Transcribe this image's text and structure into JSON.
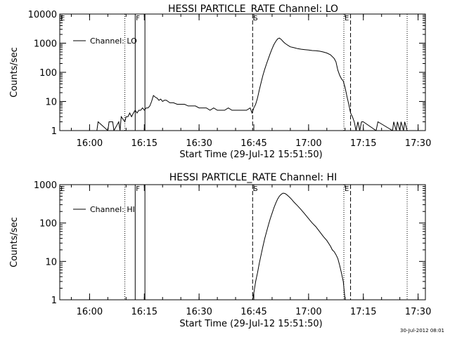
{
  "footer": {
    "timestamp": "30-Jul-2012 08:01"
  },
  "chart_data": [
    {
      "type": "line",
      "title": "HESSI PARTICLE_RATE Channel: LO",
      "xlabel": "Start Time (29-Jul-12 15:51:50)",
      "ylabel": "Counts/sec",
      "y_scale": "log",
      "xlim": [
        "15:51:50",
        "17:32:00"
      ],
      "ylim": [
        1,
        10000
      ],
      "x_ticks": [
        "16:00",
        "16:15",
        "16:30",
        "16:45",
        "17:00",
        "17:15",
        "17:30"
      ],
      "y_ticks": [
        "1",
        "10",
        "100",
        "1000",
        "10000"
      ],
      "legend": {
        "label": "Channel: LO",
        "position": "top-left"
      },
      "markers": [
        {
          "label": "E",
          "time": "15:51:50",
          "style": "dotted"
        },
        {
          "label": "",
          "time": "16:09:40",
          "style": "dotted"
        },
        {
          "label": "F",
          "time": "16:12:30",
          "style": "solid"
        },
        {
          "label": "",
          "time": "16:15:10",
          "style": "solid"
        },
        {
          "label": "S",
          "time": "16:44:40",
          "style": "dashed"
        },
        {
          "label": "E",
          "time": "17:09:40",
          "style": "dotted"
        },
        {
          "label": "",
          "time": "17:11:30",
          "style": "dashed"
        },
        {
          "label": "",
          "time": "17:27:00",
          "style": "dotted"
        }
      ],
      "series": [
        {
          "x": [
            "16:02:00",
            "16:02:20",
            "16:05:00",
            "16:05:20",
            "16:05:40",
            "16:06:00",
            "16:06:20",
            "16:06:40",
            "16:08:00",
            "16:08:20",
            "16:08:40",
            "16:09:40",
            "16:10:00",
            "16:10:30",
            "16:11:00",
            "16:11:30",
            "16:12:00",
            "16:12:30",
            "16:13:00",
            "16:13:30",
            "16:14:00",
            "16:14:30",
            "16:15:00",
            "16:15:30",
            "16:16:00",
            "16:16:30",
            "16:17:00",
            "16:17:30",
            "16:18:00",
            "16:18:30",
            "16:19:00",
            "16:19:30",
            "16:20:00",
            "16:20:30",
            "16:21:00",
            "16:21:30",
            "16:22:00",
            "16:23:00",
            "16:24:00",
            "16:25:00",
            "16:26:00",
            "16:27:00",
            "16:28:00",
            "16:29:00",
            "16:30:00",
            "16:31:00",
            "16:32:00",
            "16:33:00",
            "16:34:00",
            "16:35:00",
            "16:36:00",
            "16:37:00",
            "16:38:00",
            "16:39:00",
            "16:40:00",
            "16:41:00",
            "16:42:00",
            "16:43:00",
            "16:44:00",
            "16:44:30",
            "16:45:00",
            "16:45:30",
            "16:46:00",
            "16:46:30",
            "16:47:00",
            "16:47:30",
            "16:48:00",
            "16:48:30",
            "16:49:00",
            "16:49:30",
            "16:50:00",
            "16:50:30",
            "16:51:00",
            "16:51:30",
            "16:52:00",
            "16:52:30",
            "16:53:00",
            "16:53:30",
            "16:54:00",
            "16:54:30",
            "16:55:00",
            "16:56:00",
            "16:57:00",
            "16:58:00",
            "16:59:00",
            "17:00:00",
            "17:01:00",
            "17:02:00",
            "17:03:00",
            "17:04:00",
            "17:05:00",
            "17:06:00",
            "17:07:00",
            "17:07:30",
            "17:08:00",
            "17:08:30",
            "17:09:00",
            "17:09:30",
            "17:10:00",
            "17:10:30",
            "17:11:00",
            "17:11:30",
            "17:12:00",
            "17:12:30",
            "17:13:00",
            "17:13:30",
            "17:14:00",
            "17:14:30",
            "17:15:00",
            "17:18:30",
            "17:19:00",
            "17:23:00",
            "17:23:20",
            "17:24:00",
            "17:24:20",
            "17:25:00",
            "17:25:20",
            "17:26:00",
            "17:26:20",
            "17:27:00"
          ],
          "y": [
            1,
            2,
            1,
            2,
            2,
            2,
            2,
            1,
            2,
            1,
            3,
            2,
            3,
            3,
            4,
            3,
            4,
            5,
            4,
            5,
            5,
            6,
            5,
            6,
            6,
            7,
            10,
            16,
            14,
            13,
            11,
            12,
            10,
            11,
            11,
            10,
            9,
            9,
            8,
            8,
            8,
            7,
            7,
            7,
            6,
            6,
            6,
            5,
            6,
            5,
            5,
            5,
            6,
            5,
            5,
            5,
            5,
            5,
            6,
            4,
            6,
            8,
            13,
            25,
            45,
            80,
            130,
            200,
            300,
            450,
            650,
            900,
            1150,
            1400,
            1500,
            1350,
            1150,
            1000,
            900,
            820,
            750,
            700,
            650,
            620,
            600,
            580,
            560,
            550,
            530,
            500,
            460,
            400,
            300,
            230,
            120,
            80,
            60,
            50,
            30,
            15,
            8,
            4,
            3,
            2,
            1,
            2,
            1,
            2,
            2,
            1,
            2,
            1,
            2,
            1,
            2,
            1,
            2,
            1,
            2,
            1
          ]
        }
      ]
    },
    {
      "type": "line",
      "title": "HESSI PARTICLE_RATE Channel: HI",
      "xlabel": "Start Time (29-Jul-12 15:51:50)",
      "ylabel": "Counts/sec",
      "y_scale": "log",
      "xlim": [
        "15:51:50",
        "17:32:00"
      ],
      "ylim": [
        1,
        1000
      ],
      "x_ticks": [
        "16:00",
        "16:15",
        "16:30",
        "16:45",
        "17:00",
        "17:15",
        "17:30"
      ],
      "y_ticks": [
        "1",
        "10",
        "100",
        "1000"
      ],
      "legend": {
        "label": "Channel: HI",
        "position": "top-left"
      },
      "markers": [
        {
          "label": "E",
          "time": "15:51:50",
          "style": "dotted"
        },
        {
          "label": "",
          "time": "16:09:40",
          "style": "dotted"
        },
        {
          "label": "F",
          "time": "16:12:30",
          "style": "solid"
        },
        {
          "label": "",
          "time": "16:15:10",
          "style": "solid"
        },
        {
          "label": "S",
          "time": "16:44:40",
          "style": "dashed"
        },
        {
          "label": "E",
          "time": "17:09:40",
          "style": "dotted"
        },
        {
          "label": "",
          "time": "17:11:30",
          "style": "dashed"
        },
        {
          "label": "",
          "time": "17:27:00",
          "style": "dotted"
        }
      ],
      "series": [
        {
          "x": [
            "16:44:40",
            "16:45:00",
            "16:45:30",
            "16:46:00",
            "16:46:30",
            "16:47:00",
            "16:47:30",
            "16:48:00",
            "16:48:30",
            "16:49:00",
            "16:49:30",
            "16:50:00",
            "16:50:30",
            "16:51:00",
            "16:51:30",
            "16:52:00",
            "16:52:30",
            "16:53:00",
            "16:53:30",
            "16:54:00",
            "16:54:30",
            "16:55:00",
            "16:55:30",
            "16:56:00",
            "16:57:00",
            "16:58:00",
            "16:59:00",
            "17:00:00",
            "17:01:00",
            "17:02:00",
            "17:03:00",
            "17:04:00",
            "17:05:00",
            "17:06:00",
            "17:06:30",
            "17:07:00",
            "17:07:30",
            "17:08:00",
            "17:08:30",
            "17:09:00",
            "17:09:30",
            "17:10:00"
          ],
          "y": [
            1,
            1.5,
            3,
            5,
            9,
            15,
            25,
            40,
            60,
            90,
            130,
            180,
            250,
            330,
            420,
            500,
            560,
            600,
            590,
            550,
            500,
            450,
            400,
            350,
            280,
            220,
            170,
            130,
            100,
            80,
            60,
            45,
            35,
            25,
            20,
            18,
            15,
            12,
            8,
            5,
            3,
            1
          ]
        }
      ]
    }
  ]
}
